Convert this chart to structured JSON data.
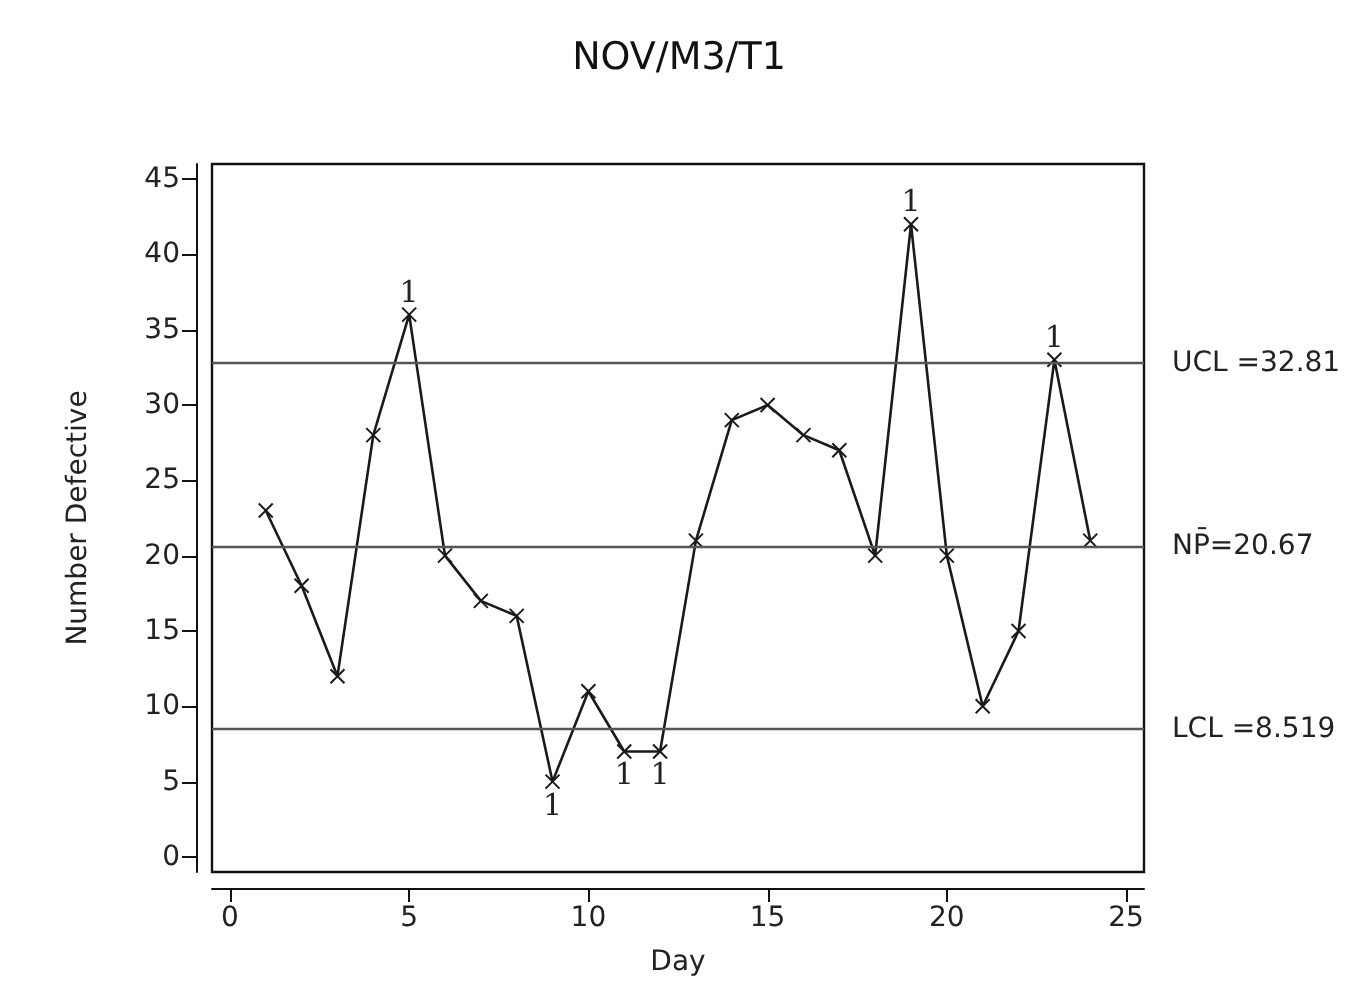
{
  "chart_data": {
    "type": "line",
    "title": "NOV/M3/T1",
    "xlabel": "Day",
    "ylabel": "Number Defective",
    "x": [
      1,
      2,
      3,
      4,
      5,
      6,
      7,
      8,
      9,
      10,
      11,
      12,
      13,
      14,
      15,
      16,
      17,
      18,
      19,
      20,
      21,
      22,
      23,
      24
    ],
    "series": [
      {
        "color": "#1a1a1a",
        "values": [
          23,
          18,
          12,
          28,
          36,
          20,
          17,
          16,
          5,
          11,
          7,
          7,
          21,
          29,
          30,
          28,
          27,
          20,
          42,
          20,
          10,
          15,
          33,
          21
        ]
      }
    ],
    "xlim": [
      -0.5,
      25.5
    ],
    "xticks": [
      0,
      5,
      10,
      15,
      20,
      25
    ],
    "ylim": [
      -1,
      46
    ],
    "yticks": [
      0,
      5,
      10,
      15,
      20,
      25,
      30,
      35,
      40,
      45
    ],
    "ref_lines": [
      {
        "axis": "y",
        "value": 32.81,
        "label": "UCL =32.81",
        "color": "#555555"
      },
      {
        "axis": "y",
        "value": 20.67,
        "label": "NP̄=20.67",
        "color": "#555555"
      },
      {
        "axis": "y",
        "value": 8.519,
        "label": "LCL =8.519",
        "color": "#555555"
      }
    ],
    "annotations": [
      {
        "text": "1",
        "x": 5,
        "y": 36
      },
      {
        "text": "1",
        "x": 9,
        "y": 5
      },
      {
        "text": "1",
        "x": 11,
        "y": 7
      },
      {
        "text": "1",
        "x": 12,
        "y": 7
      },
      {
        "text": "1",
        "x": 19,
        "y": 42
      },
      {
        "text": "1",
        "x": 23,
        "y": 33
      }
    ],
    "marker": "cross",
    "line_style": "solid",
    "grid": false
  }
}
